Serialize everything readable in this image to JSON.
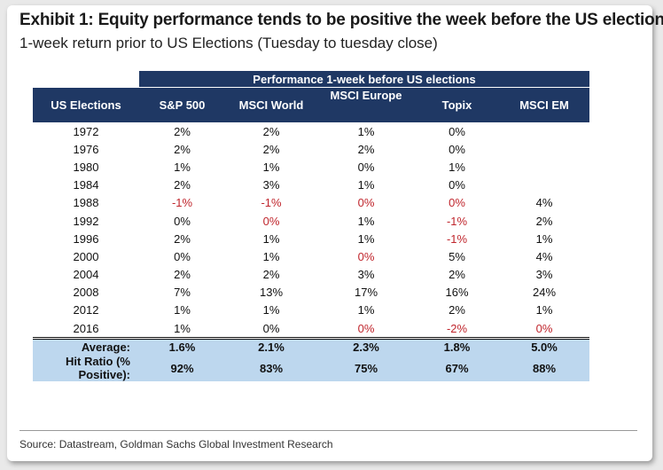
{
  "title": "Exhibit 1: Equity performance tends to be positive the week before the US election",
  "subtitle": "1-week return prior to US Elections (Tuesday to tuesday close)",
  "band_header": "Performance 1-week before US elections",
  "columns": [
    "US Elections",
    "S&P 500",
    "MSCI World",
    "MSCI Europe",
    "Topix",
    "MSCI EM"
  ],
  "rows": [
    [
      "1972",
      "2%",
      "2%",
      "1%",
      "0%",
      ""
    ],
    [
      "1976",
      "2%",
      "2%",
      "2%",
      "0%",
      ""
    ],
    [
      "1980",
      "1%",
      "1%",
      "0%",
      "1%",
      ""
    ],
    [
      "1984",
      "2%",
      "3%",
      "1%",
      "0%",
      ""
    ],
    [
      "1988",
      "-1%",
      "-1%",
      "0%",
      "0%",
      "4%"
    ],
    [
      "1992",
      "0%",
      "0%",
      "1%",
      "-1%",
      "2%"
    ],
    [
      "1996",
      "2%",
      "1%",
      "1%",
      "-1%",
      "1%"
    ],
    [
      "2000",
      "0%",
      "1%",
      "0%",
      "5%",
      "4%"
    ],
    [
      "2004",
      "2%",
      "2%",
      "3%",
      "2%",
      "3%"
    ],
    [
      "2008",
      "7%",
      "13%",
      "17%",
      "16%",
      "24%"
    ],
    [
      "2012",
      "1%",
      "1%",
      "1%",
      "2%",
      "1%"
    ],
    [
      "2016",
      "1%",
      "0%",
      "0%",
      "-2%",
      "0%"
    ]
  ],
  "negative_cells": [
    [
      4,
      1
    ],
    [
      4,
      2
    ],
    [
      4,
      3
    ],
    [
      4,
      4
    ],
    [
      5,
      2
    ],
    [
      5,
      4
    ],
    [
      6,
      4
    ],
    [
      7,
      3
    ],
    [
      11,
      3
    ],
    [
      11,
      4
    ],
    [
      11,
      5
    ]
  ],
  "summary": [
    {
      "label": "Average:",
      "values": [
        "1.6%",
        "2.1%",
        "2.3%",
        "1.8%",
        "5.0%"
      ]
    },
    {
      "label": "Hit Ratio (% Positive):",
      "values": [
        "92%",
        "83%",
        "75%",
        "67%",
        "88%"
      ]
    }
  ],
  "source": "Source: Datastream, Goldman Sachs Global Investment Research",
  "colors": {
    "header_bg": "#1f3864",
    "summary_bg": "#bdd7ee",
    "negative_text": "#c0262d"
  }
}
